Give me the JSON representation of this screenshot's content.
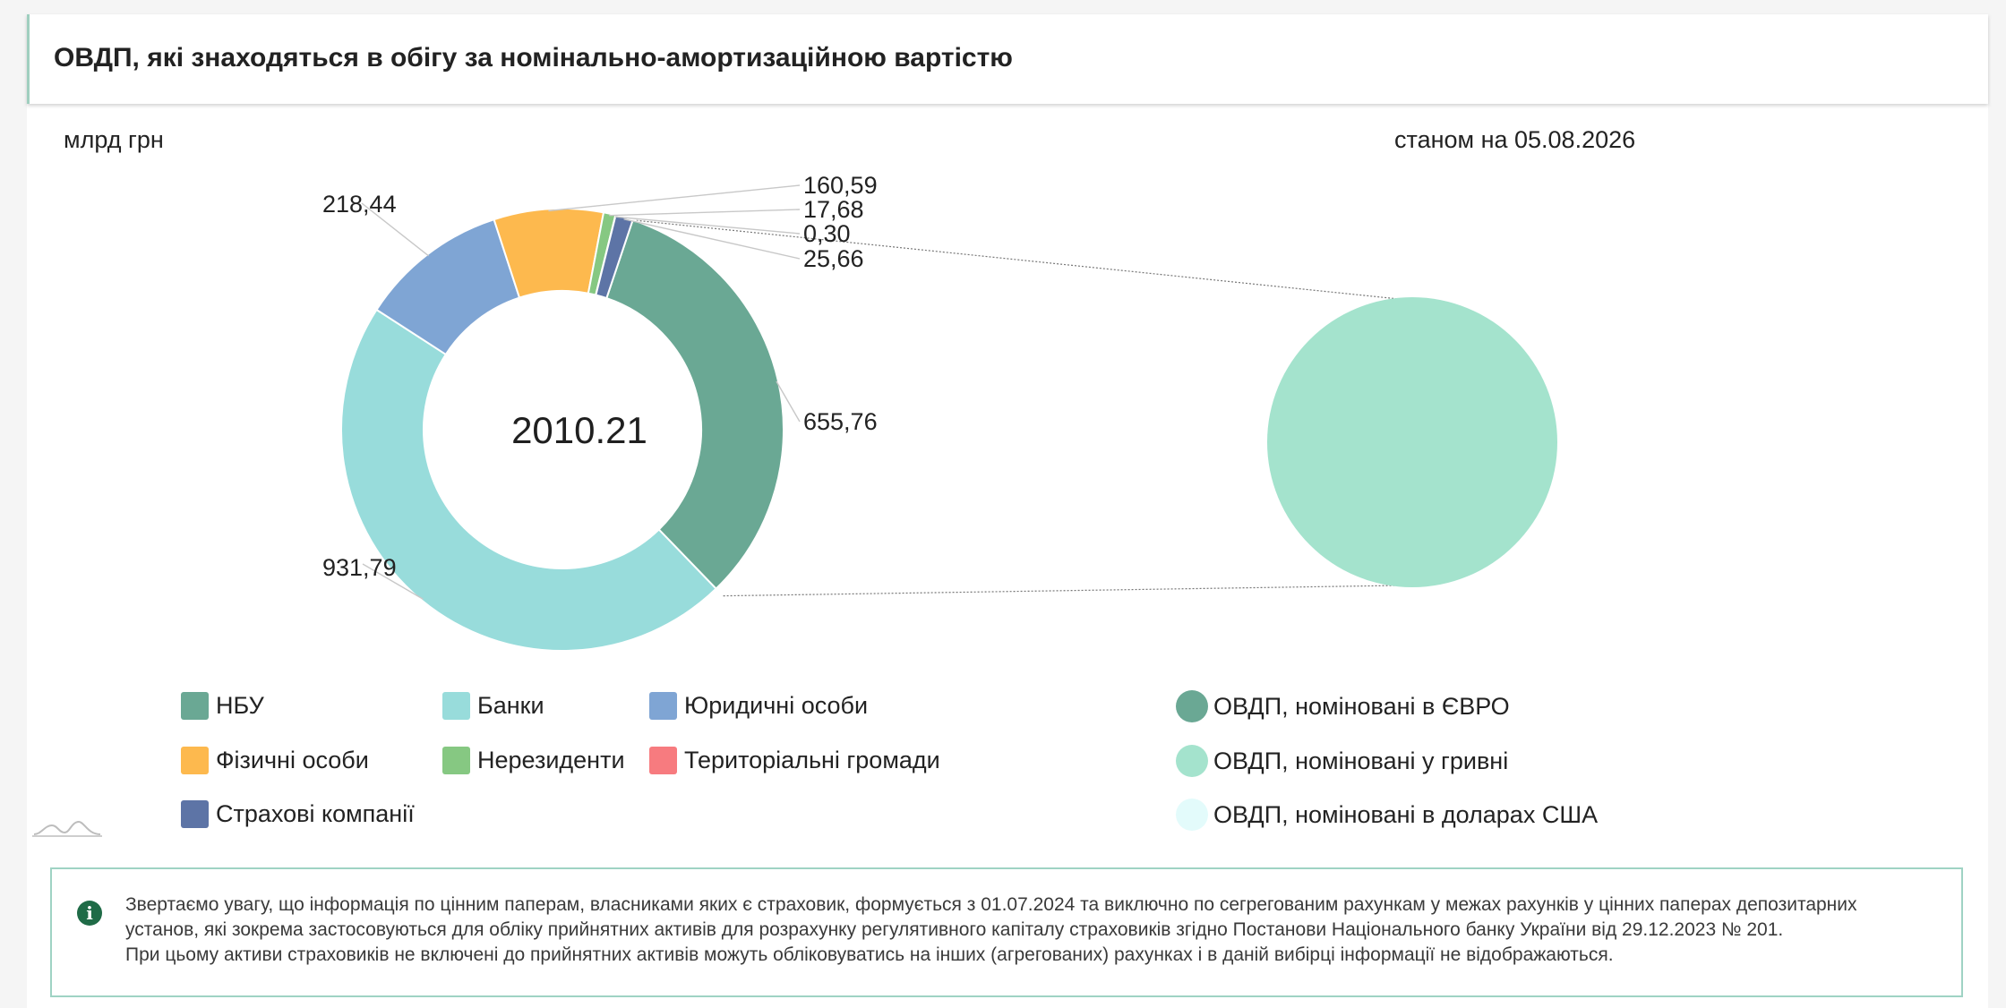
{
  "header": {
    "title": "ОВДП, які знаходяться в обігу за номінально-амортизаційною вартістю"
  },
  "unit_label": "млрд грн",
  "date_label": "станом на 05.08.2026",
  "chart_data": [
    {
      "type": "pie",
      "variant": "donut",
      "center_label": "2010.21",
      "slices": [
        {
          "name": "НБУ",
          "value": 655.76,
          "label": "655,76",
          "color": "#6aa894"
        },
        {
          "name": "Банки",
          "value": 931.79,
          "label": "931,79",
          "color": "#98dcdb"
        },
        {
          "name": "Юридичні особи",
          "value": 218.44,
          "label": "218,44",
          "color": "#7fa5d4"
        },
        {
          "name": "Фізичні особи",
          "value": 160.59,
          "label": "160,59",
          "color": "#fdb94e"
        },
        {
          "name": "Нерезиденти",
          "value": 17.68,
          "label": "17,68",
          "color": "#86c882"
        },
        {
          "name": "Територіальні громади",
          "value": 0.3,
          "label": "0,30",
          "color": "#f77b7f"
        },
        {
          "name": "Страхові компанії",
          "value": 25.66,
          "label": "25,66",
          "color": "#5d74a6"
        }
      ]
    },
    {
      "type": "pie",
      "slices": [
        {
          "name": "ОВДП, номіновані в ЄВРО",
          "value": 0,
          "color": "#6aa894"
        },
        {
          "name": "ОВДП, номіновані у гривні",
          "value": 25.66,
          "color": "#a4e3cd"
        },
        {
          "name": "ОВДП, номіновані в доларах США",
          "value": 0,
          "color": "#e3fbfb"
        }
      ]
    }
  ],
  "notice": {
    "icon": "info-icon",
    "lines": [
      "Звертаємо увагу, що інформація по цінним паперам, власниками яких є страховик, формується з 01.07.2024 та виключно по сегрегованим рахункам у межах рахунків у цінних паперах депозитарних",
      "установ, які зокрема застосовуються для обліку прийнятних активів для розрахунку регулятивного капіталу страховиків згідно Постанови Національного банку України від 29.12.2023 № 201.",
      "При цьому активи страховиків не включені до прийнятних активів можуть обліковуватись на інших (агрегованих) рахунках і в даній вибірці інформації не відображаються."
    ]
  }
}
